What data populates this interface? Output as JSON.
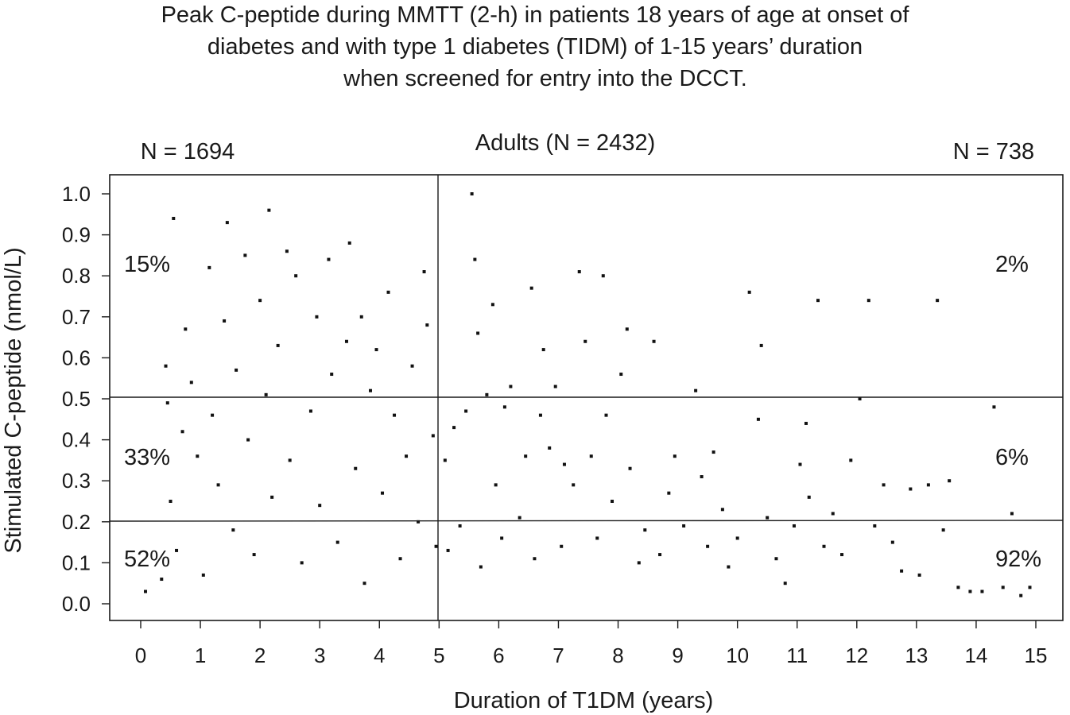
{
  "chart_data": {
    "type": "scatter",
    "title": [
      "Peak C-peptide during MMTT (2-h) in patients 18 years of age at onset of",
      "diabetes and with type 1 diabetes (TIDM) of 1-15 years’ duration",
      "when screened for entry into the DCCT."
    ],
    "subtitle": "Adults (N = 2432)",
    "group_left_label": "N = 1694",
    "group_right_label": "N = 738",
    "xlabel": "Duration of T1DM (years)",
    "ylabel": "Stimulated C-peptide (nmol/L)",
    "xlim": [
      -0.5,
      15.5
    ],
    "ylim": [
      -0.04,
      1.05
    ],
    "x_ticks": [
      "0",
      "1",
      "2",
      "3",
      "4",
      "5",
      "6",
      "7",
      "8",
      "9",
      "10",
      "11",
      "12",
      "13",
      "14",
      "15"
    ],
    "y_ticks": [
      "0.0",
      "0.1",
      "0.2",
      "0.3",
      "0.4",
      "0.5",
      "0.6",
      "0.7",
      "0.8",
      "0.9",
      "1.0"
    ],
    "reference_lines": {
      "vertical_x": 5,
      "horizontal_y": [
        0.2,
        0.5
      ]
    },
    "region_percentages": {
      "left_upper": "15%",
      "left_middle": "33%",
      "left_lower": "52%",
      "right_upper": "2%",
      "right_middle": "6%",
      "right_lower": "92%"
    },
    "grid": false,
    "legend": "none",
    "series": [
      {
        "points": [
          [
            0.08,
            0.03
          ],
          [
            0.35,
            0.06
          ],
          [
            0.42,
            0.58
          ],
          [
            0.45,
            0.49
          ],
          [
            0.5,
            0.25
          ],
          [
            0.55,
            0.94
          ],
          [
            0.6,
            0.13
          ],
          [
            0.7,
            0.42
          ],
          [
            0.75,
            0.67
          ],
          [
            0.85,
            0.54
          ],
          [
            0.95,
            0.36
          ],
          [
            1.05,
            0.07
          ],
          [
            1.15,
            0.82
          ],
          [
            1.2,
            0.46
          ],
          [
            1.3,
            0.29
          ],
          [
            1.4,
            0.69
          ],
          [
            1.45,
            0.93
          ],
          [
            1.55,
            0.18
          ],
          [
            1.6,
            0.57
          ],
          [
            1.75,
            0.85
          ],
          [
            1.8,
            0.4
          ],
          [
            1.9,
            0.12
          ],
          [
            2.0,
            0.74
          ],
          [
            2.1,
            0.51
          ],
          [
            2.15,
            0.96
          ],
          [
            2.2,
            0.26
          ],
          [
            2.3,
            0.63
          ],
          [
            2.45,
            0.86
          ],
          [
            2.5,
            0.35
          ],
          [
            2.6,
            0.8
          ],
          [
            2.7,
            0.1
          ],
          [
            2.85,
            0.47
          ],
          [
            2.95,
            0.7
          ],
          [
            3.0,
            0.24
          ],
          [
            3.15,
            0.84
          ],
          [
            3.2,
            0.56
          ],
          [
            3.3,
            0.15
          ],
          [
            3.45,
            0.64
          ],
          [
            3.5,
            0.88
          ],
          [
            3.6,
            0.33
          ],
          [
            3.7,
            0.7
          ],
          [
            3.75,
            0.05
          ],
          [
            3.85,
            0.52
          ],
          [
            3.95,
            0.62
          ],
          [
            4.05,
            0.27
          ],
          [
            4.15,
            0.76
          ],
          [
            4.25,
            0.46
          ],
          [
            4.35,
            0.11
          ],
          [
            4.45,
            0.36
          ],
          [
            4.55,
            0.58
          ],
          [
            4.65,
            0.2
          ],
          [
            4.75,
            0.81
          ],
          [
            4.8,
            0.68
          ],
          [
            4.9,
            0.41
          ],
          [
            4.95,
            0.14
          ],
          [
            5.1,
            0.35
          ],
          [
            5.15,
            0.13
          ],
          [
            5.25,
            0.43
          ],
          [
            5.35,
            0.19
          ],
          [
            5.45,
            0.47
          ],
          [
            5.55,
            1.0
          ],
          [
            5.6,
            0.84
          ],
          [
            5.65,
            0.66
          ],
          [
            5.7,
            0.09
          ],
          [
            5.8,
            0.51
          ],
          [
            5.9,
            0.73
          ],
          [
            5.95,
            0.29
          ],
          [
            6.05,
            0.16
          ],
          [
            6.1,
            0.48
          ],
          [
            6.2,
            0.53
          ],
          [
            6.35,
            0.21
          ],
          [
            6.45,
            0.36
          ],
          [
            6.55,
            0.77
          ],
          [
            6.6,
            0.11
          ],
          [
            6.7,
            0.46
          ],
          [
            6.75,
            0.62
          ],
          [
            6.85,
            0.38
          ],
          [
            6.95,
            0.53
          ],
          [
            7.05,
            0.14
          ],
          [
            7.1,
            0.34
          ],
          [
            7.25,
            0.29
          ],
          [
            7.35,
            0.81
          ],
          [
            7.45,
            0.64
          ],
          [
            7.55,
            0.36
          ],
          [
            7.65,
            0.16
          ],
          [
            7.75,
            0.8
          ],
          [
            7.8,
            0.46
          ],
          [
            7.9,
            0.25
          ],
          [
            8.05,
            0.56
          ],
          [
            8.15,
            0.67
          ],
          [
            8.2,
            0.33
          ],
          [
            8.35,
            0.1
          ],
          [
            8.45,
            0.18
          ],
          [
            8.6,
            0.64
          ],
          [
            8.7,
            0.12
          ],
          [
            8.85,
            0.27
          ],
          [
            8.95,
            0.36
          ],
          [
            9.1,
            0.19
          ],
          [
            9.3,
            0.52
          ],
          [
            9.4,
            0.31
          ],
          [
            9.5,
            0.14
          ],
          [
            9.6,
            0.37
          ],
          [
            9.75,
            0.23
          ],
          [
            9.85,
            0.09
          ],
          [
            10.0,
            0.16
          ],
          [
            10.2,
            0.76
          ],
          [
            10.35,
            0.45
          ],
          [
            10.4,
            0.63
          ],
          [
            10.5,
            0.21
          ],
          [
            10.65,
            0.11
          ],
          [
            10.8,
            0.05
          ],
          [
            10.95,
            0.19
          ],
          [
            11.05,
            0.34
          ],
          [
            11.15,
            0.44
          ],
          [
            11.2,
            0.26
          ],
          [
            11.35,
            0.74
          ],
          [
            11.45,
            0.14
          ],
          [
            11.6,
            0.22
          ],
          [
            11.75,
            0.12
          ],
          [
            11.9,
            0.35
          ],
          [
            12.05,
            0.5
          ],
          [
            12.2,
            0.74
          ],
          [
            12.3,
            0.19
          ],
          [
            12.45,
            0.29
          ],
          [
            12.6,
            0.15
          ],
          [
            12.75,
            0.08
          ],
          [
            12.9,
            0.28
          ],
          [
            13.05,
            0.07
          ],
          [
            13.2,
            0.29
          ],
          [
            13.35,
            0.74
          ],
          [
            13.45,
            0.18
          ],
          [
            13.55,
            0.3
          ],
          [
            13.7,
            0.04
          ],
          [
            13.9,
            0.03
          ],
          [
            14.1,
            0.03
          ],
          [
            14.3,
            0.48
          ],
          [
            14.45,
            0.04
          ],
          [
            14.6,
            0.22
          ],
          [
            14.75,
            0.02
          ],
          [
            14.9,
            0.04
          ]
        ]
      }
    ]
  }
}
